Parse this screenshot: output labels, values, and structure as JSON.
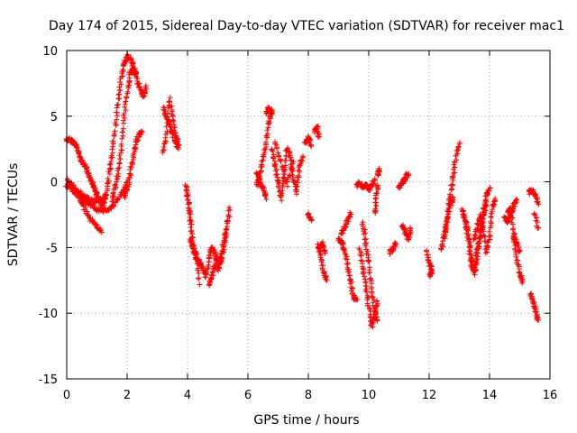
{
  "chart_data": {
    "type": "scatter",
    "title": "Day 174 of 2015, Sidereal Day-to-day VTEC variation (SDTVAR) for receiver mac1",
    "xlabel": "GPS time / hours",
    "ylabel": "SDTVAR / TECUs",
    "xlim": [
      0,
      16
    ],
    "ylim": [
      -15,
      10
    ],
    "xticks": [
      0,
      2,
      4,
      6,
      8,
      10,
      12,
      14,
      16
    ],
    "yticks": [
      -15,
      -10,
      -5,
      0,
      5,
      10
    ],
    "grid": true,
    "marker": "plus",
    "color": "#ff0000",
    "segments": [
      {
        "x": [
          0.0,
          0.1,
          0.2,
          0.3,
          0.4,
          0.5,
          0.6,
          0.7,
          0.8,
          0.9,
          1.0,
          1.1,
          1.2
        ],
        "y": [
          3.2,
          3.2,
          3.1,
          2.8,
          2.2,
          1.6,
          1.2,
          0.8,
          0.2,
          -0.4,
          -1.0,
          -1.5,
          -1.9
        ]
      },
      {
        "x": [
          0.0,
          0.2,
          0.4,
          0.6,
          0.8,
          1.0,
          1.2,
          1.4,
          1.6,
          1.8,
          2.0
        ],
        "y": [
          0.1,
          -0.2,
          -0.9,
          -1.5,
          -1.8,
          -2.1,
          -2.2,
          -2.1,
          -1.7,
          -0.9,
          -0.1
        ]
      },
      {
        "x": [
          0.0,
          0.2,
          0.4,
          0.6,
          0.8,
          1.0,
          1.15
        ],
        "y": [
          -0.2,
          -0.6,
          -1.2,
          -2.1,
          -2.9,
          -3.4,
          -3.8
        ]
      },
      {
        "x": [
          0.3,
          0.5,
          0.7,
          0.9,
          1.1,
          1.3
        ],
        "y": [
          -0.5,
          -1.0,
          -1.3,
          -1.5,
          -1.4,
          -1.0
        ]
      },
      {
        "x": [
          1.2,
          1.3,
          1.4,
          1.5,
          1.6,
          1.7,
          1.8,
          1.9,
          2.0,
          2.1,
          2.2,
          2.3
        ],
        "y": [
          -1.8,
          -1.0,
          0.5,
          2.0,
          4.0,
          6.0,
          7.8,
          9.0,
          9.6,
          9.3,
          8.9,
          8.2
        ]
      },
      {
        "x": [
          1.5,
          1.6,
          1.7,
          1.8,
          1.9,
          2.0,
          2.1,
          2.2,
          2.35,
          2.45,
          2.55,
          2.65
        ],
        "y": [
          -1.5,
          -0.5,
          0.8,
          2.5,
          4.8,
          6.8,
          8.2,
          8.6,
          7.6,
          7.0,
          6.5,
          7.2
        ]
      },
      {
        "x": [
          1.9,
          2.0,
          2.1,
          2.2,
          2.3,
          2.4,
          2.5
        ],
        "y": [
          -1.2,
          -0.6,
          0.6,
          1.8,
          3.0,
          3.6,
          3.8
        ]
      },
      {
        "x": [
          3.2,
          3.3,
          3.4,
          3.5,
          3.6,
          3.7
        ],
        "y": [
          5.6,
          5.0,
          4.4,
          3.7,
          3.0,
          2.6
        ]
      },
      {
        "x": [
          3.2,
          3.3,
          3.4,
          3.5,
          3.6,
          3.7
        ],
        "y": [
          2.3,
          3.6,
          6.3,
          4.9,
          3.6,
          2.9
        ]
      },
      {
        "x": [
          3.95,
          4.0,
          4.05,
          4.1,
          4.15,
          4.2,
          4.3,
          4.4,
          4.5,
          4.6
        ],
        "y": [
          -0.3,
          -1.0,
          -2.0,
          -3.0,
          -4.2,
          -5.2,
          -5.9,
          -6.1,
          -6.6,
          -7.0
        ]
      },
      {
        "x": [
          4.1,
          4.2,
          4.3,
          4.4
        ],
        "y": [
          -4.5,
          -5.1,
          -5.5,
          -7.7
        ]
      },
      {
        "x": [
          4.6,
          4.7,
          4.8,
          4.9,
          5.0,
          5.1,
          5.2,
          5.3,
          5.4
        ],
        "y": [
          -7.3,
          -6.0,
          -5.0,
          -5.4,
          -6.8,
          -5.8,
          -4.6,
          -3.4,
          -2.0
        ]
      },
      {
        "x": [
          4.7,
          4.8,
          4.9,
          5.0,
          5.1,
          5.2,
          5.3
        ],
        "y": [
          -7.8,
          -7.2,
          -6.4,
          -5.8,
          -6.2,
          -5.0,
          -3.6
        ]
      },
      {
        "x": [
          6.3,
          6.4,
          6.5,
          6.6,
          6.7,
          6.8
        ],
        "y": [
          -0.3,
          0.6,
          1.8,
          3.0,
          4.6,
          5.4
        ]
      },
      {
        "x": [
          6.3,
          6.4,
          6.5,
          6.6
        ],
        "y": [
          0.8,
          0.1,
          -0.5,
          -1.2
        ]
      },
      {
        "x": [
          6.6,
          6.7,
          6.8
        ],
        "y": [
          5.2,
          5.6,
          5.2
        ]
      },
      {
        "x": [
          6.8,
          6.9,
          7.0,
          7.1,
          7.2,
          7.3,
          7.4,
          7.5,
          7.6,
          7.7,
          7.8
        ],
        "y": [
          2.5,
          1.2,
          0.0,
          -1.3,
          0.8,
          2.6,
          2.0,
          0.5,
          -0.8,
          0.9,
          2.0
        ]
      },
      {
        "x": [
          6.9,
          7.1,
          7.3,
          7.5
        ],
        "y": [
          3.0,
          1.5,
          -0.3,
          1.5
        ]
      },
      {
        "x": [
          7.9,
          8.0,
          8.1
        ],
        "y": [
          3.0,
          3.4,
          2.8
        ]
      },
      {
        "x": [
          8.0,
          8.1
        ],
        "y": [
          -2.4,
          -3.0
        ]
      },
      {
        "x": [
          8.2,
          8.3,
          8.35
        ],
        "y": [
          3.8,
          4.2,
          3.4
        ]
      },
      {
        "x": [
          8.3,
          8.4,
          8.5,
          8.6
        ],
        "y": [
          -4.8,
          -5.4,
          -6.8,
          -7.5
        ]
      },
      {
        "x": [
          8.35,
          8.45,
          8.55
        ],
        "y": [
          -5.0,
          -4.7,
          -5.3
        ]
      },
      {
        "x": [
          9.0,
          9.1,
          9.2,
          9.3,
          9.4,
          9.5,
          9.6
        ],
        "y": [
          -4.3,
          -4.6,
          -5.2,
          -6.3,
          -7.6,
          -8.8,
          -9.0
        ]
      },
      {
        "x": [
          9.1,
          9.2,
          9.3,
          9.4
        ],
        "y": [
          -4.0,
          -3.5,
          -3.0,
          -2.4
        ]
      },
      {
        "x": [
          9.6,
          9.7,
          9.8,
          9.9,
          10.0,
          10.1,
          10.2
        ],
        "y": [
          -0.3,
          -0.1,
          -0.4,
          -0.2,
          -0.6,
          -0.3,
          0.1
        ]
      },
      {
        "x": [
          9.7,
          9.8,
          9.9,
          10.0,
          10.1,
          10.2,
          10.3
        ],
        "y": [
          -5.0,
          -6.5,
          -8.0,
          -9.5,
          -11.0,
          -10.2,
          -9.0
        ]
      },
      {
        "x": [
          9.8,
          9.9,
          10.0,
          10.1,
          10.2,
          10.3
        ],
        "y": [
          -3.0,
          -4.6,
          -6.2,
          -8.2,
          -9.8,
          -10.6
        ]
      },
      {
        "x": [
          10.2,
          10.25,
          10.3
        ],
        "y": [
          -2.4,
          -1.2,
          -0.2
        ]
      },
      {
        "x": [
          10.3,
          10.35
        ],
        "y": [
          0.5,
          1.0
        ]
      },
      {
        "x": [
          10.7,
          10.8,
          10.9
        ],
        "y": [
          -5.4,
          -5.1,
          -4.7
        ]
      },
      {
        "x": [
          11.0,
          11.1,
          11.2,
          11.3
        ],
        "y": [
          -0.5,
          -0.1,
          0.2,
          0.6
        ]
      },
      {
        "x": [
          11.1,
          11.2,
          11.3,
          11.4
        ],
        "y": [
          -3.3,
          -3.8,
          -4.3,
          -3.6
        ]
      },
      {
        "x": [
          11.9,
          12.0,
          12.1
        ],
        "y": [
          -5.2,
          -6.3,
          -6.6
        ]
      },
      {
        "x": [
          12.0,
          12.1
        ],
        "y": [
          -7.2,
          -6.8
        ]
      },
      {
        "x": [
          12.4,
          12.5,
          12.6,
          12.7,
          12.8,
          12.9,
          13.0
        ],
        "y": [
          -5.2,
          -4.0,
          -2.5,
          -1.0,
          0.5,
          2.0,
          3.0
        ]
      },
      {
        "x": [
          12.5,
          12.6,
          12.7,
          12.8
        ],
        "y": [
          -4.3,
          -3.0,
          -1.8,
          -1.2
        ]
      },
      {
        "x": [
          13.1,
          13.2,
          13.3,
          13.4,
          13.5,
          13.6,
          13.7,
          13.8,
          13.9,
          14.0
        ],
        "y": [
          -2.2,
          -2.8,
          -3.6,
          -5.5,
          -7.0,
          -5.6,
          -3.7,
          -2.2,
          -1.0,
          -0.5
        ]
      },
      {
        "x": [
          13.2,
          13.3,
          13.4,
          13.5,
          13.6,
          13.7,
          13.8,
          13.9
        ],
        "y": [
          -3.0,
          -4.5,
          -6.4,
          -6.8,
          -5.0,
          -4.2,
          -2.6,
          -1.6
        ]
      },
      {
        "x": [
          13.5,
          13.6,
          13.7,
          13.8,
          13.9,
          14.0,
          14.1,
          14.2
        ],
        "y": [
          -4.4,
          -3.4,
          -2.6,
          -3.6,
          -5.4,
          -4.0,
          -2.0,
          -1.3
        ]
      },
      {
        "x": [
          14.5,
          14.6,
          14.7,
          14.8,
          14.9
        ],
        "y": [
          -2.7,
          -3.1,
          -2.5,
          -1.8,
          -1.4
        ]
      },
      {
        "x": [
          14.6,
          14.7,
          14.8,
          14.9,
          15.0,
          15.1
        ],
        "y": [
          -2.3,
          -2.0,
          -4.2,
          -5.7,
          -7.0,
          -7.6
        ]
      },
      {
        "x": [
          14.8,
          14.9,
          15.0
        ],
        "y": [
          -4.0,
          -4.6,
          -5.4
        ]
      },
      {
        "x": [
          15.3,
          15.4,
          15.5,
          15.6
        ],
        "y": [
          -0.8,
          -0.6,
          -1.0,
          -1.6
        ]
      },
      {
        "x": [
          15.35,
          15.45,
          15.55,
          15.6
        ],
        "y": [
          -8.4,
          -9.2,
          -9.9,
          -10.5
        ]
      },
      {
        "x": [
          15.5,
          15.6
        ],
        "y": [
          -2.4,
          -3.6
        ]
      }
    ]
  }
}
